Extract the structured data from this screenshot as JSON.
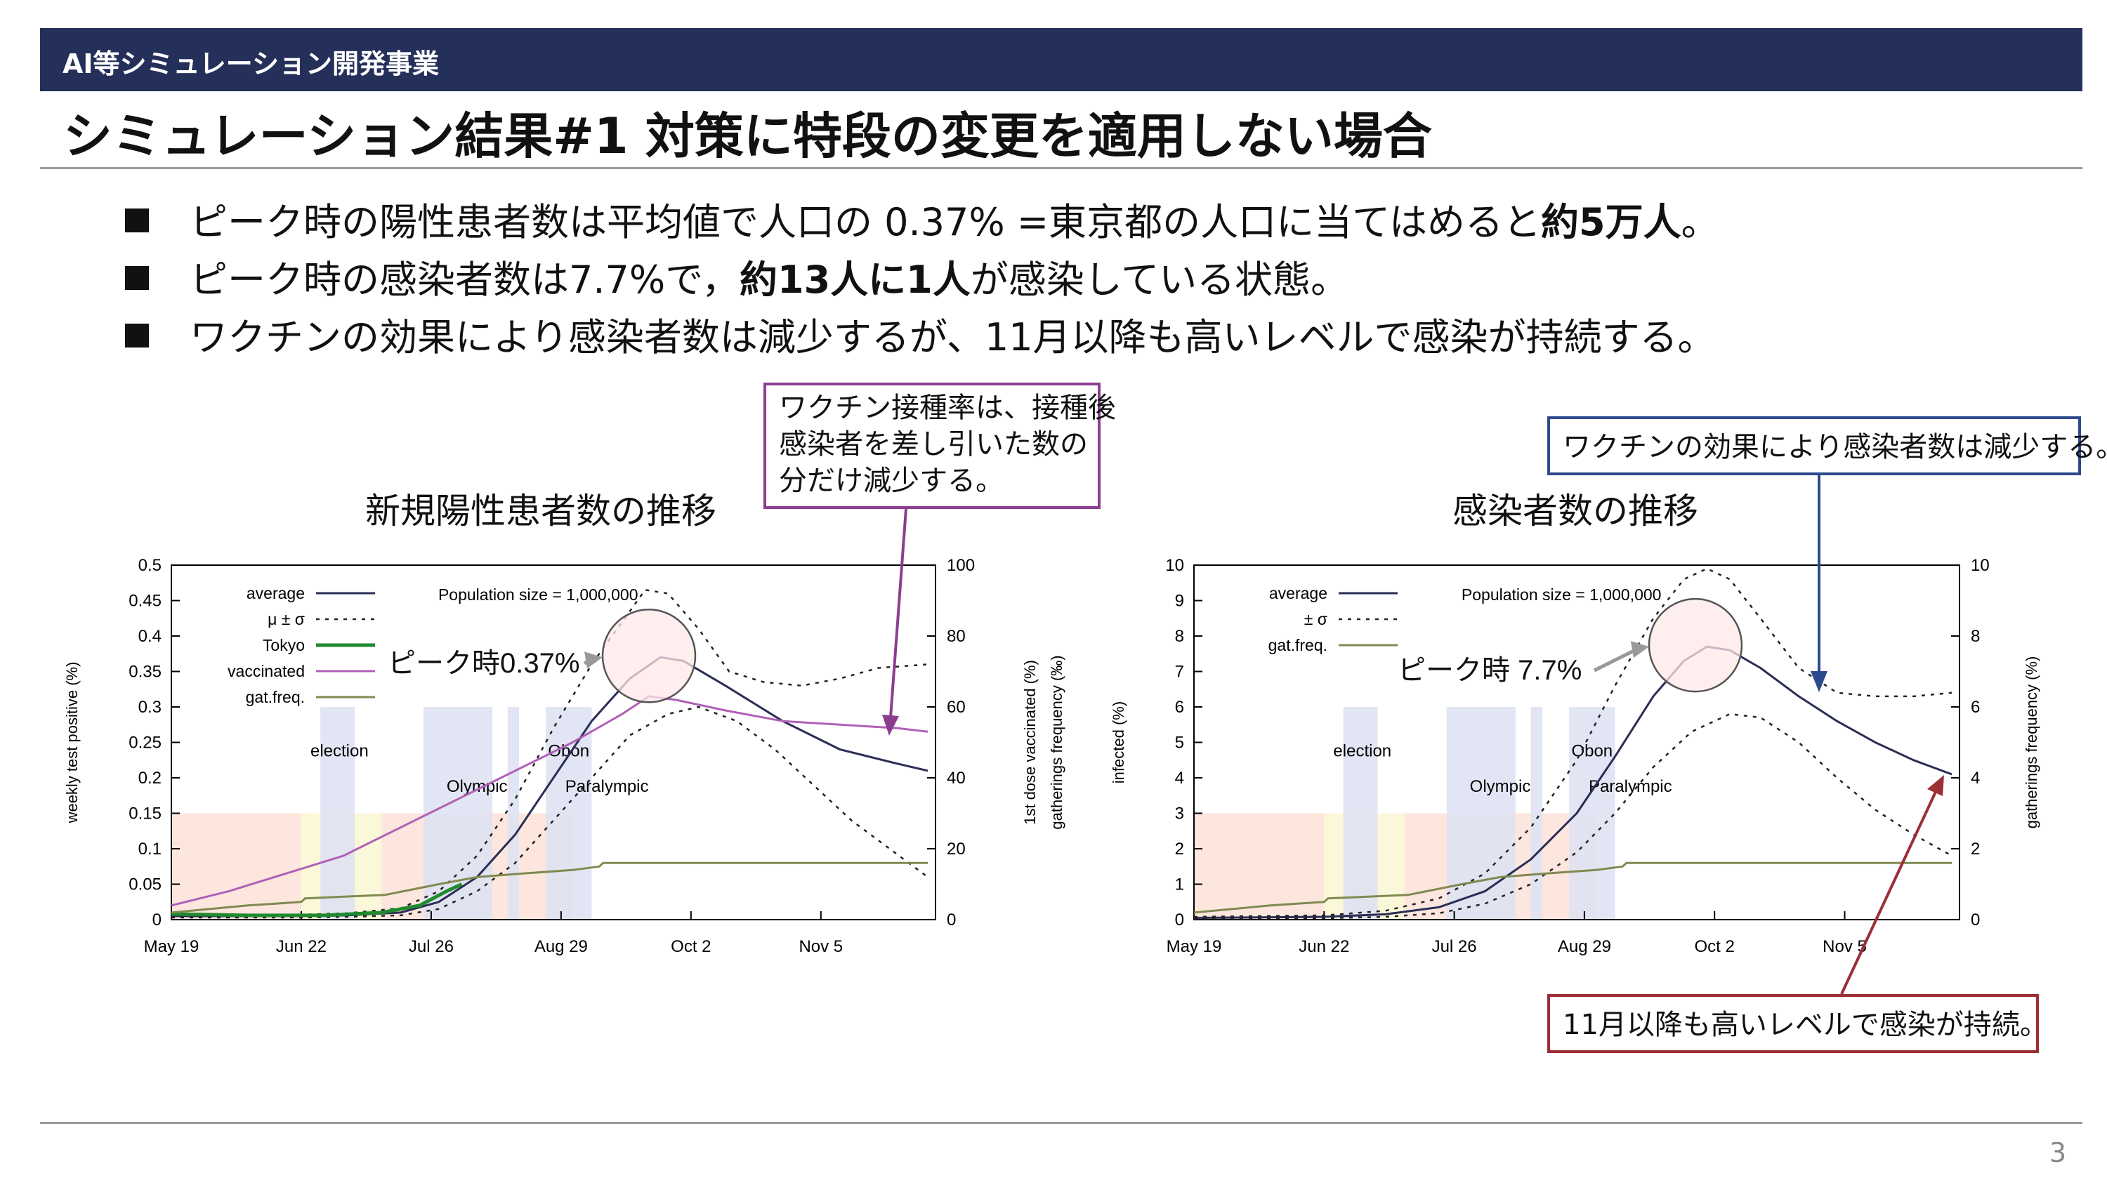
{
  "header": {
    "section": "AI等シミュレーション開発事業"
  },
  "title": "シミュレーション結果#1 対策に特段の変更を適用しない場合",
  "bullets": [
    {
      "pre": "ピーク時の陽性患者数は平均値で人口の 0.37% =東京都の人口に当てはめると",
      "bold": "約5万人",
      "post": "。"
    },
    {
      "pre": "ピーク時の感染者数は7.7%で，",
      "bold": "約13人に1人",
      "post": "が感染している状態。"
    },
    {
      "pre": "ワクチンの効果により感染者数は減少するが、11月以降も高いレベルで感染が持続する。",
      "bold": "",
      "post": ""
    }
  ],
  "callouts": {
    "vaccine_rate": [
      "ワクチン接種率は、接種後",
      "感染者を差し引いた数の",
      "分だけ減少する。"
    ],
    "vaccine_effect": "ワクチンの効果により感染者数は減少する。",
    "november": "11月以降も高いレベルで感染が持続。"
  },
  "colors": {
    "header_bg": "#25305a",
    "purple_box": "#8b3d8f",
    "blue_box": "#2d4a8c",
    "red_box": "#9b2f35"
  },
  "page_number": "3",
  "chart_data": [
    {
      "type": "line",
      "title": "新規陽性患者数の推移",
      "annotation_text": "Population size = 1,000,000",
      "peak_label": "ピーク時0.37%",
      "ylabel": "weekly test positive (%)",
      "y2label_lines": [
        "1st dose vaccinated (%)",
        "gatherings frequency (‰)"
      ],
      "ylim": [
        0,
        0.5
      ],
      "y2lim": [
        0,
        100
      ],
      "xlim": [
        0,
        200
      ],
      "yticks": [
        "0",
        "0.05",
        "0.1",
        "0.15",
        "0.2",
        "0.25",
        "0.3",
        "0.35",
        "0.4",
        "0.45",
        "0.5"
      ],
      "y2ticks": [
        "0",
        "20",
        "40",
        "60",
        "80",
        "100"
      ],
      "xticks": [
        "May 19",
        "Jun 22",
        "Jul 26",
        "Aug 29",
        "Oct 2",
        "Nov 5"
      ],
      "events": [
        "election",
        "Olympic",
        "Obon",
        "Paralympic"
      ],
      "legend": [
        "average",
        "μ ± σ",
        "Tokyo",
        "vaccinated",
        "gat.freq."
      ],
      "series": [
        {
          "name": "average",
          "axis": "y1",
          "points": [
            [
              0,
              0.005
            ],
            [
              34,
              0.005
            ],
            [
              46,
              0.006
            ],
            [
              60,
              0.01
            ],
            [
              70,
              0.025
            ],
            [
              80,
              0.06
            ],
            [
              90,
              0.12
            ],
            [
              100,
              0.2
            ],
            [
              110,
              0.28
            ],
            [
              120,
              0.34
            ],
            [
              128,
              0.37
            ],
            [
              134,
              0.365
            ],
            [
              145,
              0.33
            ],
            [
              160,
              0.28
            ],
            [
              175,
              0.24
            ],
            [
              190,
              0.22
            ],
            [
              198,
              0.21
            ]
          ]
        },
        {
          "name": "μ + σ",
          "axis": "y1",
          "points": [
            [
              0,
              0.007
            ],
            [
              34,
              0.007
            ],
            [
              46,
              0.009
            ],
            [
              60,
              0.016
            ],
            [
              70,
              0.04
            ],
            [
              80,
              0.09
            ],
            [
              90,
              0.17
            ],
            [
              100,
              0.27
            ],
            [
              110,
              0.36
            ],
            [
              118,
              0.42
            ],
            [
              124,
              0.465
            ],
            [
              130,
              0.46
            ],
            [
              138,
              0.41
            ],
            [
              146,
              0.35
            ],
            [
              155,
              0.335
            ],
            [
              165,
              0.33
            ],
            [
              175,
              0.34
            ],
            [
              185,
              0.355
            ],
            [
              198,
              0.36
            ]
          ]
        },
        {
          "name": "μ - σ",
          "axis": "y1",
          "points": [
            [
              0,
              0.003
            ],
            [
              34,
              0.003
            ],
            [
              46,
              0.004
            ],
            [
              60,
              0.006
            ],
            [
              70,
              0.015
            ],
            [
              80,
              0.04
            ],
            [
              90,
              0.08
            ],
            [
              100,
              0.14
            ],
            [
              110,
              0.2
            ],
            [
              120,
              0.26
            ],
            [
              130,
              0.29
            ],
            [
              138,
              0.3
            ],
            [
              148,
              0.28
            ],
            [
              158,
              0.24
            ],
            [
              168,
              0.19
            ],
            [
              178,
              0.14
            ],
            [
              188,
              0.1
            ],
            [
              198,
              0.06
            ]
          ]
        },
        {
          "name": "Tokyo",
          "axis": "y1",
          "points": [
            [
              0,
              0.008
            ],
            [
              20,
              0.006
            ],
            [
              40,
              0.006
            ],
            [
              55,
              0.01
            ],
            [
              65,
              0.02
            ],
            [
              72,
              0.04
            ],
            [
              76,
              0.05
            ]
          ]
        },
        {
          "name": "vaccinated",
          "axis": "y2",
          "points": [
            [
              0,
              4
            ],
            [
              15,
              8
            ],
            [
              30,
              13
            ],
            [
              45,
              18
            ],
            [
              60,
              26
            ],
            [
              75,
              34
            ],
            [
              90,
              42
            ],
            [
              105,
              50
            ],
            [
              118,
              58
            ],
            [
              125,
              63
            ],
            [
              132,
              62
            ],
            [
              145,
              59
            ],
            [
              160,
              56
            ],
            [
              175,
              55
            ],
            [
              190,
              54
            ],
            [
              198,
              53
            ]
          ]
        },
        {
          "name": "gat.freq.",
          "axis": "y2",
          "points": [
            [
              0,
              2
            ],
            [
              20,
              4
            ],
            [
              34,
              5
            ],
            [
              35,
              6
            ],
            [
              56,
              7
            ],
            [
              70,
              10
            ],
            [
              80,
              12
            ],
            [
              92,
              13
            ],
            [
              105,
              14
            ],
            [
              112,
              15
            ],
            [
              113,
              16
            ],
            [
              140,
              16
            ],
            [
              198,
              16
            ]
          ]
        }
      ]
    },
    {
      "type": "line",
      "title": "感染者数の推移",
      "annotation_text": "Population size = 1,000,000",
      "peak_label": "ピーク時 7.7%",
      "ylabel": "infected (%)",
      "y2label_lines": [
        "gatherings frequency (%)"
      ],
      "ylim": [
        0,
        10
      ],
      "y2lim": [
        0,
        10
      ],
      "xlim": [
        0,
        200
      ],
      "yticks": [
        "0",
        "1",
        "2",
        "3",
        "4",
        "5",
        "6",
        "7",
        "8",
        "9",
        "10"
      ],
      "y2ticks": [
        "0",
        "2",
        "4",
        "6",
        "8",
        "10"
      ],
      "xticks": [
        "May 19",
        "Jun 22",
        "Jul 26",
        "Aug 29",
        "Oct 2",
        "Nov 5"
      ],
      "events": [
        "election",
        "Olympic",
        "Obon",
        "Paralympic"
      ],
      "legend": [
        "average",
        "± σ",
        "gat.freq."
      ],
      "series": [
        {
          "name": "average",
          "axis": "y1",
          "points": [
            [
              0,
              0.05
            ],
            [
              34,
              0.08
            ],
            [
              50,
              0.15
            ],
            [
              64,
              0.35
            ],
            [
              76,
              0.8
            ],
            [
              88,
              1.7
            ],
            [
              100,
              3.0
            ],
            [
              110,
              4.6
            ],
            [
              120,
              6.3
            ],
            [
              128,
              7.3
            ],
            [
              134,
              7.7
            ],
            [
              140,
              7.6
            ],
            [
              148,
              7.1
            ],
            [
              158,
              6.3
            ],
            [
              168,
              5.6
            ],
            [
              178,
              5.0
            ],
            [
              188,
              4.5
            ],
            [
              198,
              4.1
            ]
          ]
        },
        {
          "name": "μ + σ",
          "axis": "y1",
          "points": [
            [
              0,
              0.08
            ],
            [
              34,
              0.12
            ],
            [
              50,
              0.25
            ],
            [
              64,
              0.6
            ],
            [
              76,
              1.3
            ],
            [
              88,
              2.6
            ],
            [
              100,
              4.5
            ],
            [
              110,
              6.6
            ],
            [
              120,
              8.5
            ],
            [
              128,
              9.6
            ],
            [
              134,
              9.9
            ],
            [
              140,
              9.6
            ],
            [
              148,
              8.5
            ],
            [
              158,
              7.1
            ],
            [
              168,
              6.4
            ],
            [
              178,
              6.3
            ],
            [
              188,
              6.3
            ],
            [
              198,
              6.4
            ]
          ]
        },
        {
          "name": "μ - σ",
          "axis": "y1",
          "points": [
            [
              0,
              0.02
            ],
            [
              34,
              0.04
            ],
            [
              50,
              0.08
            ],
            [
              64,
              0.18
            ],
            [
              76,
              0.45
            ],
            [
              88,
              1.0
            ],
            [
              100,
              1.9
            ],
            [
              110,
              3.0
            ],
            [
              120,
              4.3
            ],
            [
              130,
              5.3
            ],
            [
              140,
              5.8
            ],
            [
              148,
              5.7
            ],
            [
              158,
              5.0
            ],
            [
              168,
              4.0
            ],
            [
              178,
              3.1
            ],
            [
              188,
              2.4
            ],
            [
              198,
              1.8
            ]
          ]
        },
        {
          "name": "gat.freq.",
          "axis": "y2",
          "points": [
            [
              0,
              0.2
            ],
            [
              20,
              0.4
            ],
            [
              34,
              0.5
            ],
            [
              35,
              0.6
            ],
            [
              56,
              0.7
            ],
            [
              70,
              1.0
            ],
            [
              80,
              1.2
            ],
            [
              92,
              1.3
            ],
            [
              105,
              1.4
            ],
            [
              112,
              1.5
            ],
            [
              113,
              1.6
            ],
            [
              140,
              1.6
            ],
            [
              198,
              1.6
            ]
          ]
        }
      ]
    }
  ]
}
